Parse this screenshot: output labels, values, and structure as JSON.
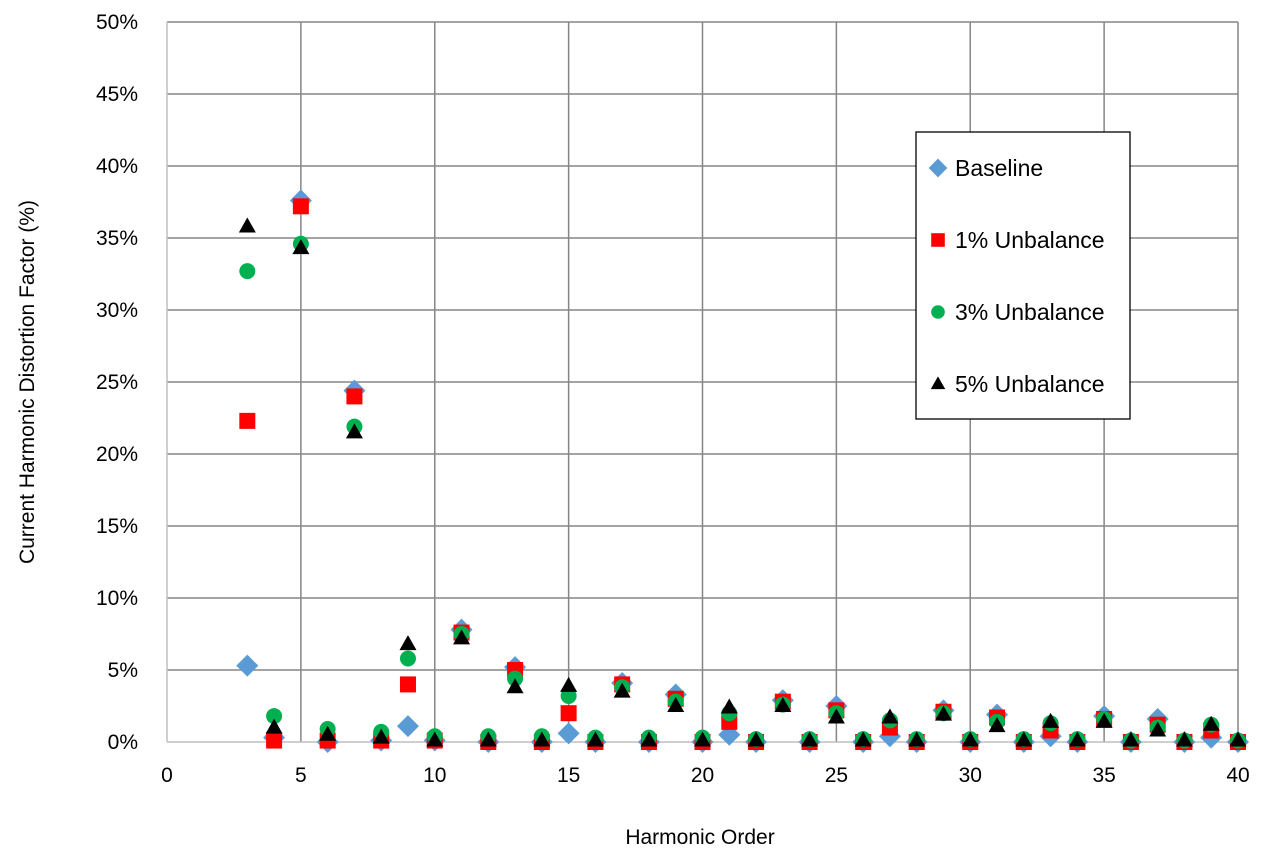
{
  "chart_data": {
    "type": "scatter",
    "title": "",
    "xlabel": "Harmonic Order",
    "ylabel": "Current Harmonic Distortion Factor (%)",
    "xlim": [
      0,
      40
    ],
    "ylim": [
      0,
      50
    ],
    "x_ticks": [
      0,
      5,
      10,
      15,
      20,
      25,
      30,
      35,
      40
    ],
    "y_ticks": [
      "0%",
      "5%",
      "10%",
      "15%",
      "20%",
      "25%",
      "30%",
      "35%",
      "40%",
      "45%",
      "50%"
    ],
    "grid": true,
    "legend_position": "upper right inside",
    "x": [
      3,
      4,
      5,
      6,
      7,
      8,
      9,
      10,
      11,
      12,
      13,
      14,
      15,
      16,
      17,
      18,
      19,
      20,
      21,
      22,
      23,
      24,
      25,
      26,
      27,
      28,
      29,
      30,
      31,
      32,
      33,
      34,
      35,
      36,
      37,
      38,
      39,
      40
    ],
    "series": [
      {
        "name": "Baseline",
        "marker": "diamond",
        "color": "#5B9BD5",
        "values": [
          5.3,
          0.3,
          37.6,
          0.0,
          24.4,
          0.1,
          1.1,
          0.1,
          7.8,
          0.0,
          5.2,
          0.0,
          0.6,
          0.0,
          4.1,
          0.0,
          3.3,
          0.0,
          0.5,
          0.0,
          2.9,
          0.0,
          2.5,
          0.0,
          0.4,
          0.0,
          2.2,
          0.0,
          1.9,
          0.0,
          0.4,
          0.0,
          1.8,
          0.0,
          1.6,
          0.0,
          0.3,
          0.0
        ]
      },
      {
        "name": "1% Unbalance",
        "marker": "square",
        "color": "#FF0000",
        "values": [
          22.3,
          0.1,
          37.2,
          0.1,
          24.0,
          0.1,
          4.0,
          0.1,
          7.6,
          0.0,
          5.0,
          0.0,
          2.0,
          0.0,
          4.0,
          0.0,
          3.0,
          0.0,
          1.4,
          0.0,
          2.8,
          0.0,
          2.2,
          0.0,
          1.0,
          0.0,
          2.1,
          0.0,
          1.7,
          0.0,
          0.8,
          0.0,
          1.6,
          0.0,
          1.2,
          0.0,
          0.8,
          0.0
        ]
      },
      {
        "name": "3% Unbalance",
        "marker": "circle",
        "color": "#00B050",
        "values": [
          32.7,
          1.8,
          34.6,
          0.9,
          21.9,
          0.7,
          5.8,
          0.4,
          7.5,
          0.4,
          4.4,
          0.4,
          3.2,
          0.3,
          3.8,
          0.3,
          2.8,
          0.3,
          2.0,
          0.2,
          2.6,
          0.2,
          2.0,
          0.2,
          1.5,
          0.2,
          2.0,
          0.2,
          1.4,
          0.2,
          1.3,
          0.2,
          1.6,
          0.1,
          1.0,
          0.1,
          1.2,
          0.1
        ]
      },
      {
        "name": "5% Unbalance",
        "marker": "triangle",
        "color": "#000000",
        "values": [
          35.8,
          1.0,
          34.3,
          0.5,
          21.5,
          0.3,
          6.8,
          0.1,
          7.2,
          0.1,
          3.8,
          0.1,
          3.9,
          0.1,
          3.5,
          0.1,
          2.5,
          0.1,
          2.4,
          0.1,
          2.5,
          0.1,
          1.7,
          0.1,
          1.7,
          0.1,
          1.9,
          0.1,
          1.1,
          0.1,
          1.4,
          0.1,
          1.4,
          0.1,
          0.8,
          0.1,
          1.2,
          0.1
        ]
      }
    ]
  }
}
